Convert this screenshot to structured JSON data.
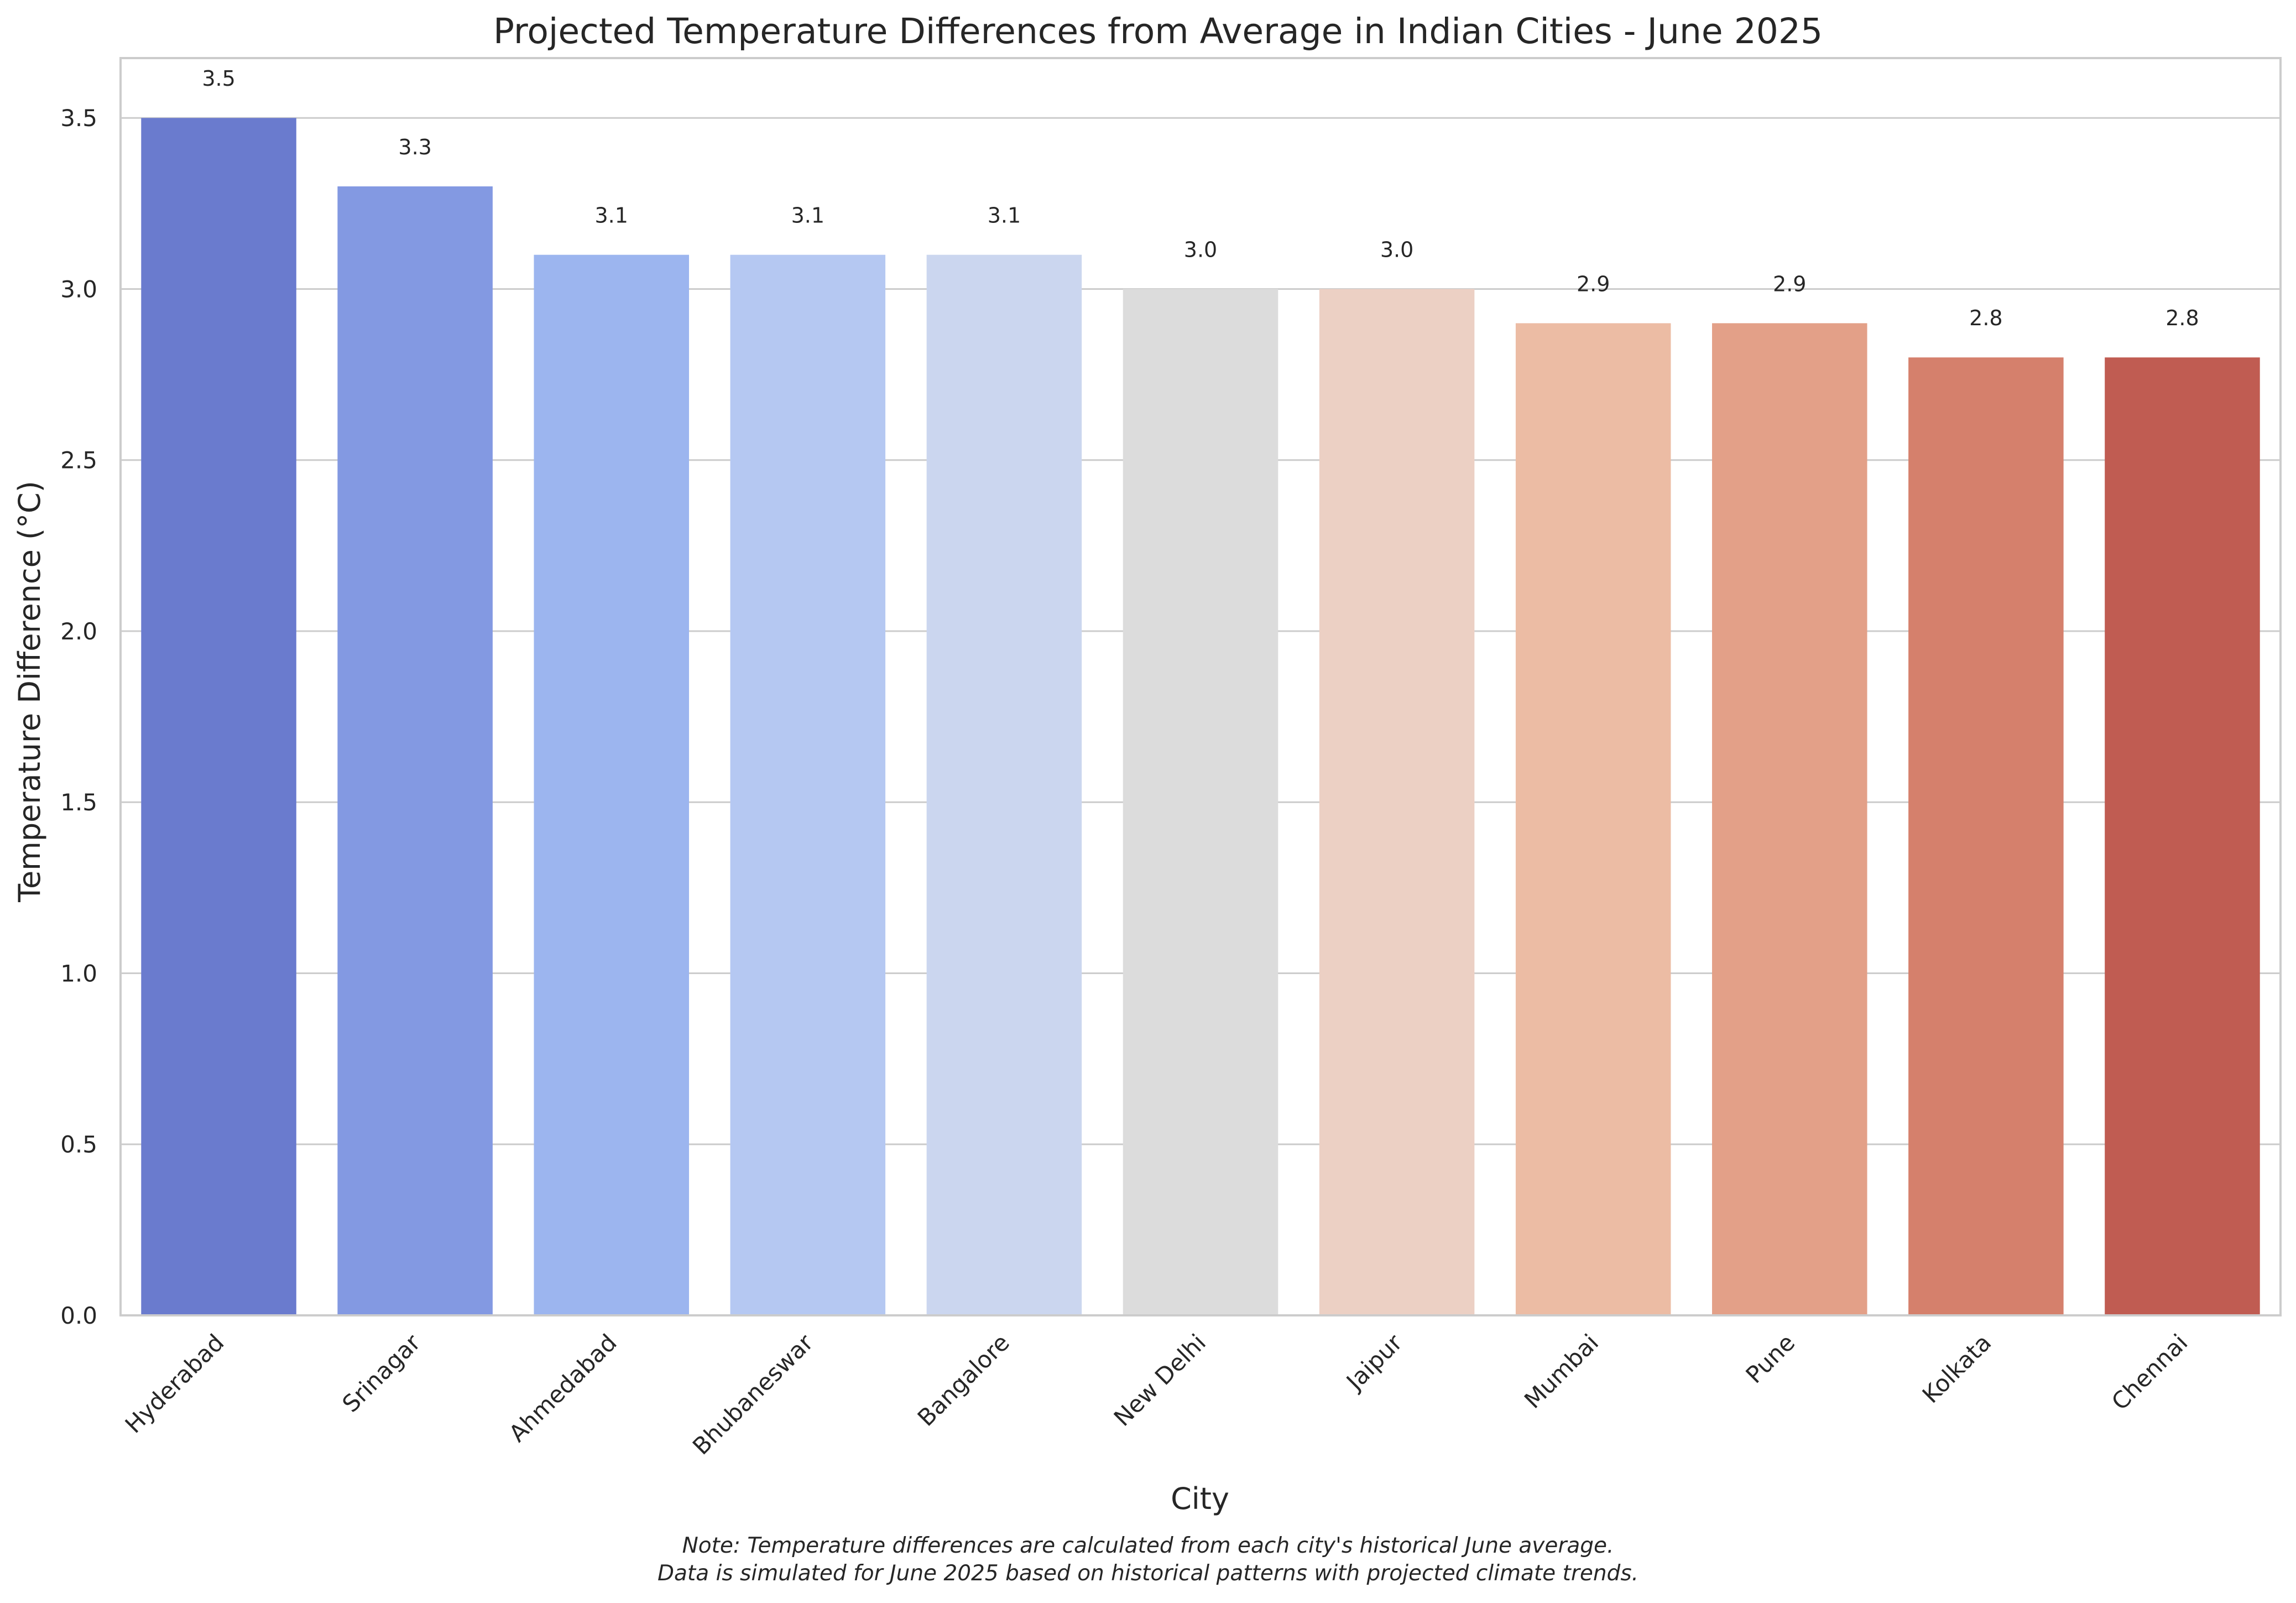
{
  "chart_data": {
    "type": "bar",
    "title": "Projected Temperature Differences from Average in Indian Cities - June 2025",
    "xlabel": "City",
    "ylabel": "Temperature Difference (°C)",
    "ylim": [
      0,
      3.675
    ],
    "yticks": [
      "0.0",
      "0.5",
      "1.0",
      "1.5",
      "2.0",
      "2.5",
      "3.0",
      "3.5"
    ],
    "grid": true,
    "legend": "none",
    "categories": [
      "Hyderabad",
      "Srinagar",
      "Ahmedabad",
      "Bhubaneswar",
      "Bangalore",
      "New Delhi",
      "Jaipur",
      "Mumbai",
      "Pune",
      "Kolkata",
      "Chennai"
    ],
    "values": [
      3.5,
      3.3,
      3.1,
      3.1,
      3.1,
      3.0,
      3.0,
      2.9,
      2.9,
      2.8,
      2.8
    ],
    "value_labels": [
      "3.5",
      "3.3",
      "3.1",
      "3.1",
      "3.1",
      "3.0",
      "3.0",
      "2.9",
      "2.9",
      "2.8",
      "2.8"
    ],
    "colors": [
      "#6a7bce",
      "#8399e2",
      "#9cb5ef",
      "#b5c8f2",
      "#cbd6ef",
      "#dcdcdc",
      "#ecd0c4",
      "#ecbca4",
      "#e3a088",
      "#d5806c",
      "#c05c52"
    ]
  },
  "notes": {
    "line1": "Note: Temperature differences are calculated from each city's historical June average.",
    "line2": "Data is simulated for June 2025 based on historical patterns with projected climate trends."
  }
}
